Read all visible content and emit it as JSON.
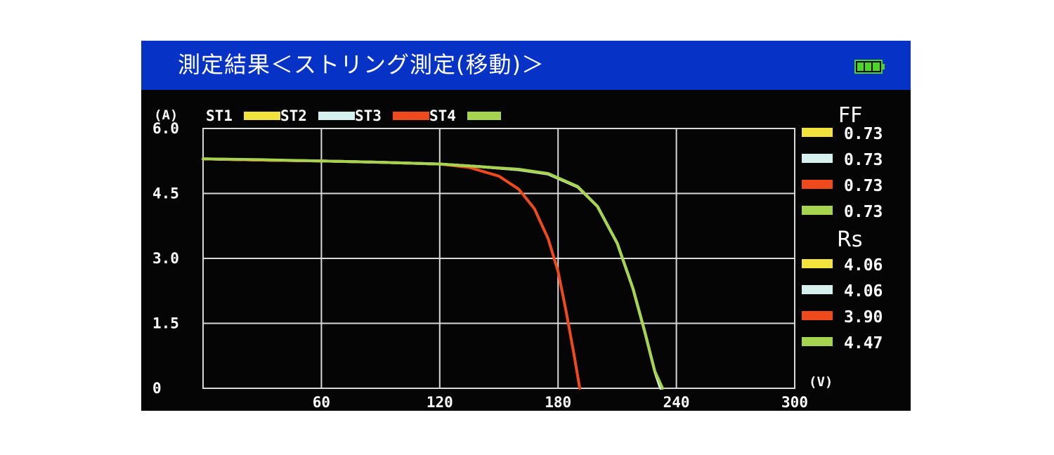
{
  "screen": {
    "title": "測定結果＜ストリング測定(移動)＞",
    "battery_icon": "battery-full-icon"
  },
  "colors": {
    "title_bar": "#0632c6",
    "screen_bg": "#050505",
    "grid": "#d8d8d8",
    "st1": "#f2e23c",
    "st2": "#d6f0ee",
    "st3": "#ef4a1e",
    "st4": "#a6d44e",
    "battery": "#4cd42a"
  },
  "chart_data": {
    "type": "line",
    "y_unit": "(A)",
    "x_unit": "(V)",
    "xlim": [
      0,
      300
    ],
    "ylim": [
      0,
      6.0
    ],
    "x_ticks": [
      "60",
      "120",
      "180",
      "240",
      "300"
    ],
    "y_ticks": [
      "6.0",
      "4.5",
      "3.0",
      "1.5",
      "0"
    ],
    "grid": true,
    "legend_position": "top",
    "series": [
      {
        "name": "ST1",
        "color": "#f2e23c",
        "x": [
          0,
          30,
          60,
          90,
          120,
          140,
          160,
          175,
          190,
          200,
          210,
          218,
          224,
          229,
          232
        ],
        "y": [
          5.3,
          5.27,
          5.25,
          5.22,
          5.18,
          5.12,
          5.05,
          4.95,
          4.65,
          4.2,
          3.35,
          2.3,
          1.3,
          0.4,
          0
        ]
      },
      {
        "name": "ST2",
        "color": "#d6f0ee",
        "x": [
          0,
          30,
          60,
          90,
          120,
          140,
          160,
          175,
          190,
          200,
          210,
          218,
          224,
          229,
          232
        ],
        "y": [
          5.3,
          5.27,
          5.25,
          5.22,
          5.18,
          5.12,
          5.05,
          4.95,
          4.65,
          4.2,
          3.35,
          2.3,
          1.3,
          0.4,
          0
        ]
      },
      {
        "name": "ST3",
        "color": "#ef4a1e",
        "x": [
          0,
          30,
          60,
          90,
          120,
          135,
          150,
          160,
          168,
          175,
          180,
          184,
          188,
          191
        ],
        "y": [
          5.3,
          5.27,
          5.25,
          5.22,
          5.18,
          5.1,
          4.9,
          4.6,
          4.15,
          3.45,
          2.7,
          1.8,
          0.8,
          0
        ]
      },
      {
        "name": "ST4",
        "color": "#a6d44e",
        "x": [
          0,
          30,
          60,
          90,
          120,
          140,
          160,
          175,
          190,
          200,
          210,
          218,
          224,
          229,
          233
        ],
        "y": [
          5.3,
          5.28,
          5.25,
          5.22,
          5.18,
          5.12,
          5.06,
          4.96,
          4.66,
          4.2,
          3.35,
          2.3,
          1.3,
          0.4,
          0
        ]
      }
    ]
  },
  "side_panel": {
    "ff_label": "FF",
    "ff_values": [
      "0.73",
      "0.73",
      "0.73",
      "0.73"
    ],
    "rs_label": "Rs",
    "rs_values": [
      "4.06",
      "4.06",
      "3.90",
      "4.47"
    ]
  }
}
